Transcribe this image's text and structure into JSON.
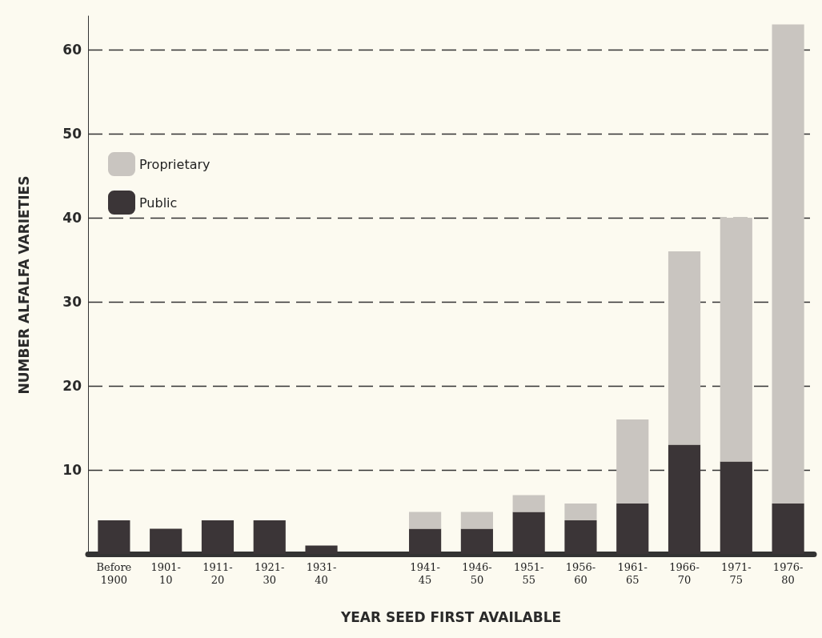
{
  "chart_data": {
    "type": "bar",
    "stacked": true,
    "xlabel": "YEAR SEED FIRST AVAILABLE",
    "ylabel": "NUMBER ALFALFA VARIETIES",
    "categories": [
      "Before 1900",
      "1901-10",
      "1911-20",
      "1921-30",
      "1931-40",
      null,
      "1941-45",
      "1946-50",
      "1951-55",
      "1956-60",
      "1961-65",
      "1966-70",
      "1971-75",
      "1976-80"
    ],
    "series": [
      {
        "name": "Public",
        "color": "#3b3537",
        "values": [
          4,
          3,
          4,
          4,
          1,
          null,
          3,
          3,
          5,
          4,
          6,
          13,
          11,
          6
        ]
      },
      {
        "name": "Proprietary",
        "color": "#c9c5c0",
        "values": [
          null,
          null,
          null,
          null,
          null,
          null,
          2,
          2,
          2,
          2,
          10,
          23,
          29,
          57
        ]
      }
    ],
    "ylim": [
      0,
      64
    ],
    "yticks": [
      10,
      20,
      30,
      40,
      50,
      60
    ],
    "grid": "y",
    "line_style": "dashed",
    "legend": "top left"
  }
}
